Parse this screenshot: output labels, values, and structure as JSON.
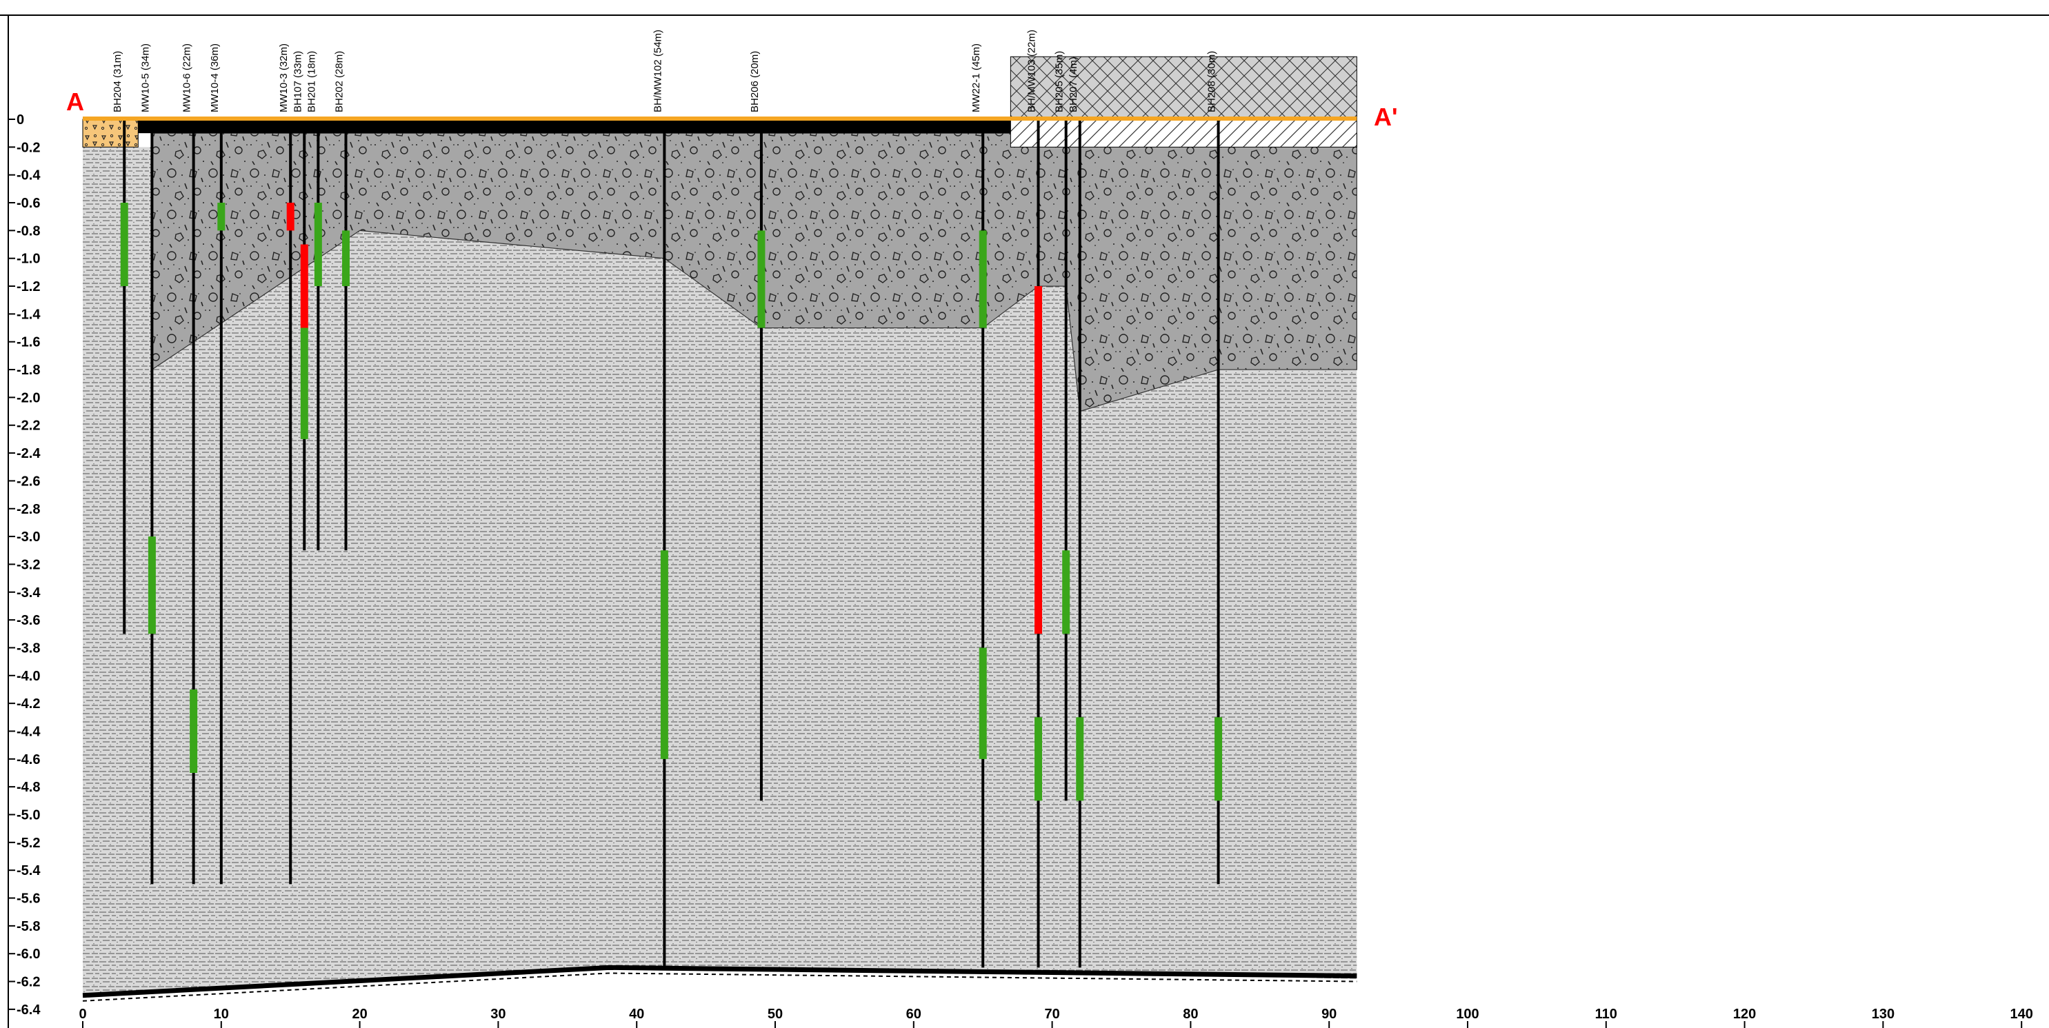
{
  "section": {
    "start_label": "A",
    "end_label": "A'"
  },
  "axes": {
    "y_ticks": [
      "0",
      "-0.2",
      "-0.4",
      "-0.6",
      "-0.8",
      "-1.0",
      "-1.2",
      "-1.4",
      "-1.6",
      "-1.8",
      "-2.0",
      "-2.2",
      "-2.4",
      "-2.6",
      "-2.8",
      "-3.0",
      "-3.2",
      "-3.4",
      "-3.6",
      "-3.8",
      "-4.0",
      "-4.2",
      "-4.4",
      "-4.6",
      "-4.8",
      "-5.0",
      "-5.2",
      "-5.4",
      "-5.6",
      "-5.8",
      "-6.0",
      "-6.2",
      "-6.4"
    ],
    "x_ticks": [
      "0",
      "10",
      "20",
      "30",
      "40",
      "50",
      "60",
      "70",
      "80",
      "90",
      "100",
      "110",
      "120",
      "130",
      "140"
    ],
    "x_range": [
      0,
      140
    ],
    "y_range": [
      -6.4,
      0
    ]
  },
  "colors": {
    "screen_green": "#3aa61a",
    "screen_red": "#ff0000",
    "surface_orange": "#f5a623",
    "fill_gray": "#a9a9a9",
    "clay_gray": "#d6d6d6",
    "asphalt_black": "#000000",
    "section_label": "#ff0000"
  },
  "strata": [
    {
      "type": "asphalt",
      "top": 0,
      "bottom": -0.1,
      "x_range": [
        4,
        67
      ]
    },
    {
      "type": "sand-gravel",
      "top": 0,
      "bottom": -0.2,
      "x_range": [
        0,
        4
      ]
    },
    {
      "type": "concrete-slab",
      "top": 0.45,
      "bottom": 0,
      "x_range": [
        67,
        92
      ]
    },
    {
      "type": "hatched-fill",
      "top": 0,
      "bottom": -0.2,
      "x_range": [
        67,
        92
      ]
    },
    {
      "type": "gravelly-fill",
      "profile_x": [
        5,
        5,
        20,
        42,
        49,
        65,
        69,
        71,
        72,
        82,
        92
      ],
      "profile_bottom": [
        -0.2,
        -1.8,
        -0.8,
        -1.0,
        -1.5,
        -1.5,
        -1.2,
        -1.2,
        -2.1,
        -1.8,
        -1.8
      ]
    },
    {
      "type": "clay-till",
      "top": -0.2,
      "bottom": -6.2,
      "x_range": [
        0,
        92
      ]
    }
  ],
  "boreholes": [
    {
      "label": "BH204 (31m)",
      "x": 3,
      "bottom": -3.7,
      "screens": [
        {
          "from": -0.6,
          "to": -1.2,
          "color": "green"
        }
      ]
    },
    {
      "label": "MW10-5 (34m)",
      "x": 5,
      "bottom": -5.5,
      "screens": [
        {
          "from": -3.0,
          "to": -3.7,
          "color": "green"
        }
      ]
    },
    {
      "label": "MW10-6 (22m)",
      "x": 8,
      "bottom": -5.5,
      "screens": [
        {
          "from": -4.1,
          "to": -4.7,
          "color": "green"
        }
      ]
    },
    {
      "label": "MW10-4 (36m)",
      "x": 10,
      "bottom": -5.5,
      "screens": [
        {
          "from": -0.6,
          "to": -0.8,
          "color": "green"
        }
      ]
    },
    {
      "label": "MW10-3 (32m)",
      "x": 15,
      "bottom": -5.5,
      "screens": [
        {
          "from": -0.6,
          "to": -0.8,
          "color": "red"
        }
      ]
    },
    {
      "label": "BH107 (33m)",
      "x": 16,
      "bottom": -3.1,
      "screens": [
        {
          "from": -0.9,
          "to": -1.5,
          "color": "red"
        },
        {
          "from": -1.5,
          "to": -2.3,
          "color": "green"
        }
      ]
    },
    {
      "label": "BH201 (18m)",
      "x": 17,
      "bottom": -3.1,
      "screens": [
        {
          "from": -0.6,
          "to": -1.2,
          "color": "green"
        }
      ]
    },
    {
      "label": "BH202 (28m)",
      "x": 19,
      "bottom": -3.1,
      "screens": [
        {
          "from": -0.8,
          "to": -1.2,
          "color": "green"
        }
      ]
    },
    {
      "label": "BH/MW102 (54m)",
      "x": 42,
      "bottom": -6.1,
      "screens": [
        {
          "from": -3.1,
          "to": -4.6,
          "color": "green"
        }
      ]
    },
    {
      "label": "BH206 (20m)",
      "x": 49,
      "bottom": -4.9,
      "screens": [
        {
          "from": -0.8,
          "to": -1.5,
          "color": "green"
        }
      ]
    },
    {
      "label": "MW22-1 (45m)",
      "x": 65,
      "bottom": -6.1,
      "screens": [
        {
          "from": -0.8,
          "to": -1.5,
          "color": "green"
        },
        {
          "from": -3.8,
          "to": -4.6,
          "color": "green"
        }
      ]
    },
    {
      "label": "BH/MW103 (22m)",
      "x": 69,
      "bottom": -6.1,
      "screens": [
        {
          "from": -1.2,
          "to": -3.7,
          "color": "red"
        },
        {
          "from": -4.3,
          "to": -4.9,
          "color": "green"
        }
      ]
    },
    {
      "label": "BH205 (35m)",
      "x": 71,
      "bottom": -4.9,
      "screens": [
        {
          "from": -3.1,
          "to": -3.7,
          "color": "green"
        }
      ]
    },
    {
      "label": "BH207 (4m)",
      "x": 72,
      "bottom": -6.1,
      "screens": [
        {
          "from": -4.3,
          "to": -4.9,
          "color": "green"
        }
      ]
    },
    {
      "label": "BH208 (30m)",
      "x": 82,
      "bottom": -5.5,
      "screens": [
        {
          "from": -4.3,
          "to": -4.9,
          "color": "green"
        }
      ]
    }
  ]
}
